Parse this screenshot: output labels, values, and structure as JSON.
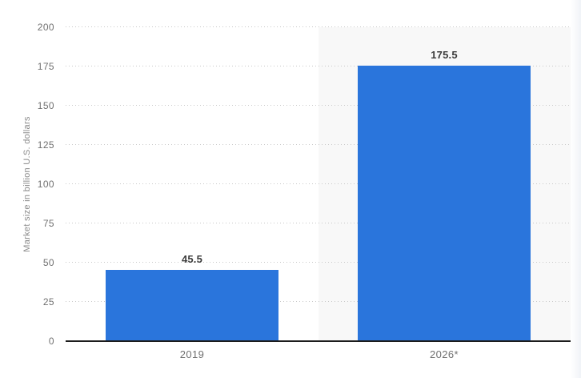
{
  "chart_data": {
    "type": "bar",
    "title": "",
    "xlabel": "",
    "ylabel": "Market size in billion U.S. dollars",
    "ylim": [
      0,
      200
    ],
    "ytick_step": 25,
    "yticks": [
      0,
      25,
      50,
      75,
      100,
      125,
      150,
      175,
      200
    ],
    "ytick_labels": [
      "0",
      "25",
      "50",
      "75",
      "100",
      "125",
      "150",
      "175",
      "200"
    ],
    "categories": [
      "2019",
      "2026*"
    ],
    "values": [
      45.5,
      175.5
    ],
    "value_labels": [
      "45.5",
      "175.5"
    ],
    "highlighted_category": "2026*",
    "grid": "horizontal-dotted",
    "legend": "none",
    "colors": {
      "bar": "#2a75dc",
      "highlight_band": "#f8f8f8",
      "gridline": "#c9c9c9",
      "axis_line": "#1c1c1c",
      "tick_label": "#707070",
      "category_label": "#707070",
      "value_label": "#3c3c3c",
      "axis_title": "#8a8a8a",
      "background": "#ffffff"
    }
  }
}
